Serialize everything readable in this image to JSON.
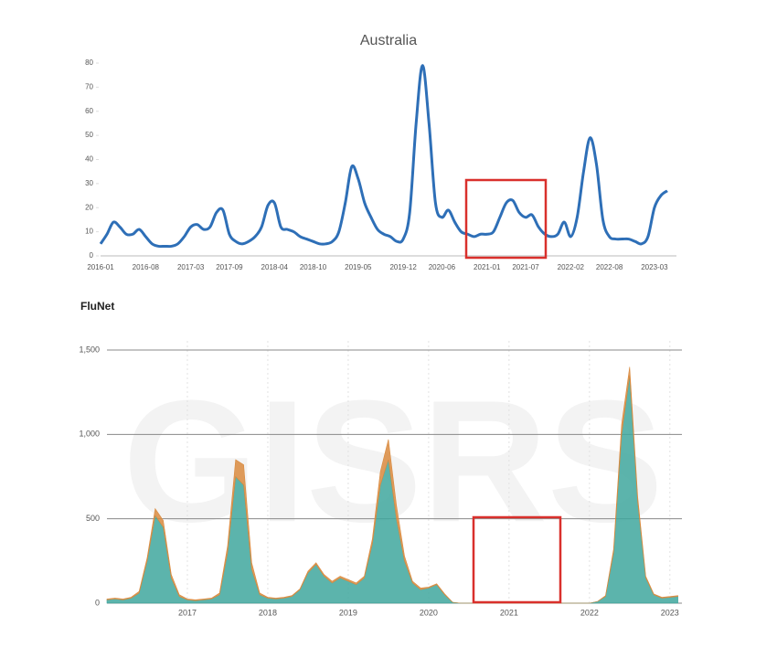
{
  "chart_data": [
    {
      "type": "line",
      "title": "Australia",
      "color": "#2e6fb7",
      "categories": [
        "2016-01",
        null,
        null,
        null,
        null,
        null,
        null,
        "2016-08",
        null,
        null,
        null,
        null,
        null,
        null,
        "2017-03",
        null,
        null,
        null,
        null,
        null,
        "2017-09",
        null,
        null,
        null,
        null,
        null,
        null,
        "2018-04",
        null,
        null,
        null,
        null,
        null,
        "2018-10",
        null,
        null,
        null,
        null,
        null,
        null,
        "2019-05",
        null,
        null,
        null,
        null,
        null,
        null,
        "2019-12",
        null,
        null,
        null,
        null,
        null,
        "2020-06",
        null,
        null,
        null,
        null,
        null,
        null,
        "2021-01",
        null,
        null,
        null,
        null,
        null,
        "2021-07",
        null,
        null,
        null,
        null,
        null,
        null,
        "2022-02",
        null,
        null,
        null,
        null,
        null,
        "2022-08",
        null,
        null,
        null,
        null,
        null,
        null,
        "2023-03",
        null,
        null
      ],
      "values": [
        5,
        9,
        14,
        12,
        9,
        9,
        11,
        8,
        5,
        4,
        4,
        4,
        5,
        8,
        12,
        13,
        11,
        12,
        18,
        19,
        9,
        6,
        5,
        6,
        8,
        12,
        21,
        22,
        12,
        11,
        10,
        8,
        7,
        6,
        5,
        5,
        6,
        10,
        22,
        37,
        32,
        22,
        16,
        11,
        9,
        8,
        6,
        7,
        18,
        55,
        79,
        55,
        22,
        16,
        19,
        14,
        10,
        9,
        8,
        9,
        9,
        10,
        16,
        22,
        23,
        18,
        16,
        17,
        12,
        9,
        8,
        9,
        14,
        8,
        16,
        35,
        49,
        38,
        15,
        8,
        7,
        7,
        7,
        6,
        5,
        8,
        20,
        25,
        27
      ],
      "ylim": [
        0,
        80
      ],
      "yticks": [
        0,
        10,
        20,
        30,
        40,
        50,
        60,
        70,
        80
      ]
    },
    {
      "type": "area",
      "title": "FluNet",
      "watermark": "GISRS",
      "x": [
        2016.0,
        2016.1,
        2016.2,
        2016.3,
        2016.4,
        2016.5,
        2016.6,
        2016.7,
        2016.8,
        2016.9,
        2017.0,
        2017.1,
        2017.2,
        2017.3,
        2017.4,
        2017.5,
        2017.6,
        2017.7,
        2017.8,
        2017.9,
        2018.0,
        2018.1,
        2018.2,
        2018.3,
        2018.4,
        2018.5,
        2018.6,
        2018.7,
        2018.8,
        2018.9,
        2019.0,
        2019.1,
        2019.2,
        2019.3,
        2019.4,
        2019.5,
        2019.6,
        2019.7,
        2019.8,
        2019.9,
        2020.0,
        2020.1,
        2020.2,
        2020.3,
        2020.4,
        2020.5,
        2020.6,
        2020.7,
        2020.8,
        2020.9,
        2021.0,
        2021.1,
        2021.2,
        2021.3,
        2021.4,
        2021.5,
        2021.6,
        2021.7,
        2021.8,
        2021.9,
        2022.0,
        2022.1,
        2022.2,
        2022.3,
        2022.4,
        2022.5,
        2022.6,
        2022.7,
        2022.8,
        2022.9,
        2023.0,
        2023.1
      ],
      "series": [
        {
          "color": "#3fa79d",
          "values": [
            20,
            25,
            20,
            30,
            60,
            250,
            520,
            450,
            150,
            40,
            20,
            15,
            20,
            25,
            50,
            300,
            750,
            700,
            200,
            50,
            30,
            25,
            30,
            40,
            80,
            180,
            230,
            160,
            120,
            150,
            130,
            110,
            150,
            350,
            700,
            850,
            500,
            250,
            120,
            80,
            90,
            110,
            50,
            5,
            0,
            0,
            0,
            0,
            0,
            0,
            0,
            0,
            0,
            0,
            0,
            0,
            0,
            0,
            0,
            0,
            0,
            10,
            40,
            300,
            1000,
            1350,
            600,
            150,
            50,
            30,
            35,
            40
          ]
        },
        {
          "color": "#d98a3e",
          "values": [
            5,
            5,
            5,
            5,
            10,
            20,
            40,
            40,
            20,
            10,
            5,
            5,
            5,
            5,
            10,
            40,
            100,
            120,
            40,
            10,
            5,
            5,
            5,
            5,
            5,
            10,
            10,
            10,
            10,
            10,
            10,
            10,
            10,
            30,
            80,
            120,
            80,
            30,
            10,
            10,
            5,
            5,
            5,
            0,
            0,
            0,
            0,
            0,
            0,
            0,
            0,
            0,
            0,
            0,
            0,
            0,
            0,
            0,
            0,
            0,
            0,
            0,
            5,
            20,
            60,
            50,
            30,
            10,
            5,
            5,
            5,
            5
          ]
        }
      ],
      "xlim": [
        2016.0,
        2023.15
      ],
      "xticks": [
        2017,
        2018,
        2019,
        2020,
        2021,
        2022,
        2023
      ],
      "ylim": [
        0,
        1500
      ],
      "yticks": [
        0,
        500,
        {
          "value": 1000,
          "label": "1,000"
        },
        {
          "value": 1500,
          "label": "1,500"
        }
      ],
      "grid": true
    }
  ]
}
